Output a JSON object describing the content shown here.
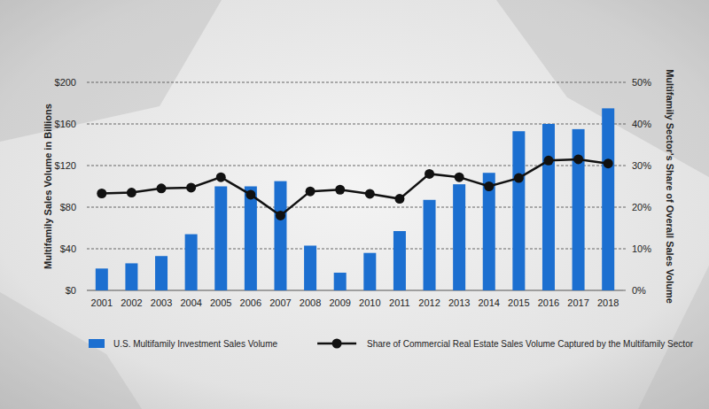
{
  "chart_data": {
    "type": "bar",
    "y_label": "Multifamily Sales Volume in Billions",
    "y2_label": "Multifamily Sector's Share of Overall Sales Volume",
    "categories": [
      "2001",
      "2002",
      "2003",
      "2004",
      "2005",
      "2006",
      "2007",
      "2008",
      "2009",
      "2010",
      "2011",
      "2012",
      "2013",
      "2014",
      "2015",
      "2016",
      "2017",
      "2018"
    ],
    "series": [
      {
        "name": "U.S. Multifamily Investment Sales Volume",
        "type": "bar",
        "color": "#1c6fd0",
        "values": [
          21,
          26,
          33,
          54,
          100,
          100,
          105,
          43,
          17,
          36,
          57,
          87,
          102,
          113,
          153,
          160,
          155,
          175
        ]
      },
      {
        "name": "Share of Commercial Real Estate Sales Volume Captured by the Multifamily Sector",
        "type": "line",
        "color": "#111111",
        "marker": "circle",
        "axis": "y2",
        "values": [
          23.3,
          23.5,
          24.5,
          24.7,
          27.2,
          23,
          18,
          23.8,
          24.2,
          23.2,
          22,
          28,
          27.2,
          25,
          27,
          31.2,
          31.5,
          30.5
        ]
      }
    ],
    "ylim": [
      0,
      200
    ],
    "yticks": [
      {
        "value": 0,
        "label": "$0"
      },
      {
        "value": 40,
        "label": "$40"
      },
      {
        "value": 80,
        "label": "$80"
      },
      {
        "value": 120,
        "label": "$120"
      },
      {
        "value": 160,
        "label": "$160"
      },
      {
        "value": 200,
        "label": "$200"
      }
    ],
    "y2lim": [
      0,
      50
    ],
    "y2ticks": [
      {
        "value": 0,
        "label": "0%"
      },
      {
        "value": 10,
        "label": "10%"
      },
      {
        "value": 20,
        "label": "20%"
      },
      {
        "value": 30,
        "label": "30%"
      },
      {
        "value": 40,
        "label": "40%"
      },
      {
        "value": 50,
        "label": "50%"
      }
    ],
    "grid": true,
    "legend": "bottom"
  }
}
